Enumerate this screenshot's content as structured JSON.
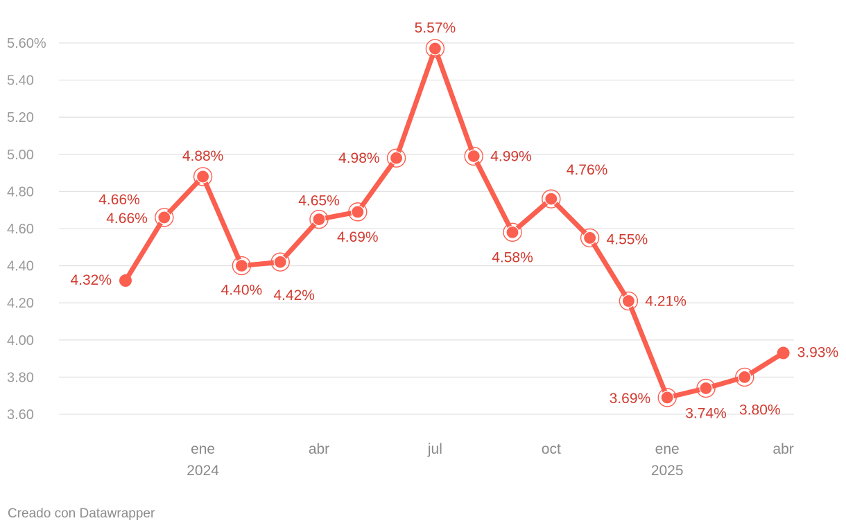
{
  "chart_data": {
    "type": "line",
    "x": [
      "2023-11",
      "2023-12",
      "2024-01",
      "2024-02",
      "2024-03",
      "2024-04",
      "2024-05",
      "2024-06",
      "2024-07",
      "2024-08",
      "2024-09",
      "2024-10",
      "2024-11",
      "2024-12",
      "2025-01",
      "2025-02",
      "2025-03",
      "2025-04"
    ],
    "series": [
      {
        "values": [
          4.32,
          4.66,
          4.88,
          4.4,
          4.42,
          4.65,
          4.69,
          4.98,
          5.57,
          4.99,
          4.58,
          4.76,
          4.55,
          4.21,
          3.69,
          3.74,
          3.8,
          3.93
        ]
      }
    ],
    "data_labels": [
      "4.32%",
      "4.66%",
      "4.88%",
      "4.40%",
      "4.42%",
      "4.65%",
      "4.69%",
      "4.98%",
      "5.57%",
      "4.99%",
      "4.58%",
      "4.76%",
      "4.55%",
      "4.21%",
      "3.69%",
      "3.74%",
      "3.80%",
      "3.93%"
    ],
    "annotation": "4.66%",
    "ylim": [
      3.6,
      5.6
    ],
    "yticks": [
      3.6,
      3.8,
      4.0,
      4.2,
      4.4,
      4.6,
      4.8,
      5.0,
      5.2,
      5.4,
      5.6
    ],
    "ytick_labels": [
      "3.60",
      "3.80",
      "4.00",
      "4.20",
      "4.40",
      "4.60",
      "4.80",
      "5.00",
      "5.20",
      "5.40",
      "5.60%"
    ],
    "xtick_labels": [
      {
        "x": "2024-01",
        "label": "ene",
        "year": "2024"
      },
      {
        "x": "2024-04",
        "label": "abr",
        "year": ""
      },
      {
        "x": "2024-07",
        "label": "jul",
        "year": ""
      },
      {
        "x": "2024-10",
        "label": "oct",
        "year": ""
      },
      {
        "x": "2025-01",
        "label": "ene",
        "year": "2025"
      },
      {
        "x": "2025-04",
        "label": "abr",
        "year": ""
      }
    ],
    "grid": true,
    "line_color": "#fa5f4f",
    "label_color": "#d13a2f"
  },
  "footer": {
    "credit": "Creado con Datawrapper"
  }
}
